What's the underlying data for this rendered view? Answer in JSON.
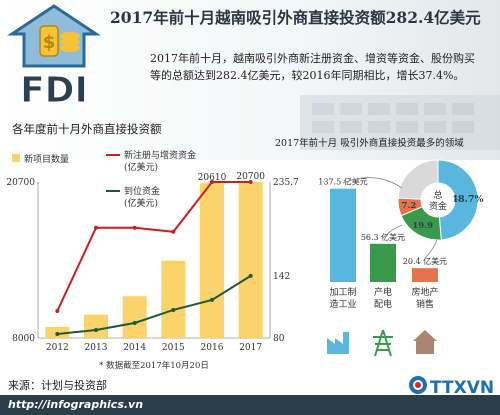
{
  "title": "2017年前十月越南吸引外商直接投资额282.4亿美元",
  "intro": "2017年前十月，越南吸引外商新注册资金、增资等资金、股份购买等的总额达到282.4亿美元，较2016年同期相比，增长37.4%。",
  "fdi_logo_text": "FDI",
  "left_chart_title": "各年度前十月外商直接投资额",
  "right_chart_title": "2017年前十月 吸引外商直接投资最多的领域",
  "source": "来源：计划与投资部",
  "footer_url": "http://infographics.vn",
  "logo_text": "TTXVN",
  "colors": {
    "bar": "#fbd36b",
    "registered_line": "#cc1f24",
    "disbursed_line": "#1e5a34",
    "manufacturing": "#59b6dc",
    "power": "#3a9a4c",
    "real_estate": "#e4744b",
    "other": "#d9d9d9",
    "footer": "#2c3d4a"
  },
  "chart_data": [
    {
      "type": "bar+line",
      "title": "各年度前十月外商直接投资额",
      "categories": [
        "2012",
        "2013",
        "2014",
        "2015",
        "2016",
        "2017"
      ],
      "left_axis": {
        "ticks": [
          "20700",
          "8000"
        ],
        "ylim": [
          8000,
          20700
        ]
      },
      "right_axis": {
        "ticks": [
          "235.7",
          "142",
          "80"
        ],
        "ylim": [
          80,
          235.7
        ]
      },
      "series": [
        {
          "name": "新项目数量",
          "kind": "bar",
          "axis": "left",
          "values": [
            8900,
            9900,
            11400,
            14300,
            20610,
            20700
          ]
        },
        {
          "name": "新注册与增资资金\n(亿美元)",
          "kind": "line",
          "axis": "right",
          "values": [
            107,
            190,
            190,
            186,
            235.7,
            235.7
          ]
        },
        {
          "name": "到位资金\n(亿美元)",
          "kind": "line",
          "axis": "right",
          "values": [
            84,
            88,
            95,
            108,
            118,
            142
          ]
        }
      ],
      "data_labels": {
        "2016": "20610",
        "2017": "20700"
      },
      "note": "* 数据截至2017年10月20日"
    },
    {
      "type": "bar+pie",
      "title": "2017年前十月 吸引外商直接投资最多的领域",
      "categories": [
        "加工制\n造工业",
        "产电\n配电",
        "房地产\n销售"
      ],
      "values": [
        137.5,
        56.3,
        20.4
      ],
      "value_labels": [
        "137.5 亿美元",
        "56.3 亿美元",
        "20.4 亿美元"
      ],
      "unit": "亿美元",
      "pie": {
        "center_label": "总\n资金",
        "slices": [
          {
            "label": "48.7%",
            "value": 48.7
          },
          {
            "label": "19.9",
            "value": 19.9
          },
          {
            "label": "7.2",
            "value": 7.2
          },
          {
            "label": "",
            "value": 24.2
          }
        ]
      }
    }
  ]
}
